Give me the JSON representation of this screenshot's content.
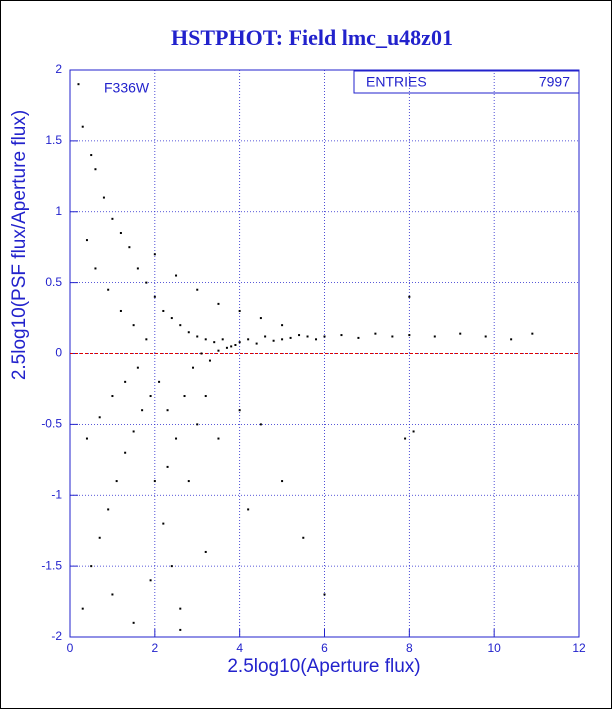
{
  "chart_data": {
    "type": "scatter",
    "title": "HSTPHOT: Field lmc_u48z01",
    "annotation": "F336W",
    "entries": {
      "label": "ENTRIES",
      "value": 7997
    },
    "xlabel": "2.5log10(Aperture flux)",
    "ylabel": "2.5log10(PSF flux/Aperture flux)",
    "xlim": [
      0,
      12
    ],
    "ylim": [
      -2,
      2
    ],
    "xticks": [
      0,
      2,
      4,
      6,
      8,
      10,
      12
    ],
    "yticks": [
      -2,
      -1.5,
      -1,
      -0.5,
      0,
      0.5,
      1,
      1.5,
      2
    ],
    "grid": true,
    "color": "#000000",
    "x": [
      0.2,
      0.3,
      0.5,
      0.6,
      0.8,
      1.0,
      1.2,
      1.4,
      1.6,
      1.8,
      0.3,
      0.5,
      0.7,
      0.9,
      1.1,
      1.3,
      1.5,
      1.7,
      1.9,
      0.4,
      0.6,
      0.9,
      1.2,
      1.5,
      1.8,
      0.4,
      0.7,
      1.0,
      1.3,
      1.6,
      2.0,
      2.2,
      2.4,
      2.6,
      2.8,
      3.0,
      3.2,
      3.4,
      3.6,
      3.8,
      2.1,
      2.3,
      2.5,
      2.7,
      2.9,
      3.1,
      3.3,
      3.5,
      3.7,
      3.9,
      4.0,
      4.2,
      4.4,
      4.6,
      4.8,
      5.0,
      5.2,
      5.4,
      5.6,
      5.8,
      6.0,
      6.4,
      6.8,
      7.2,
      7.6,
      8.0,
      8.6,
      9.2,
      9.8,
      10.4,
      10.9,
      2.0,
      2.2,
      2.4,
      2.6,
      2.3,
      2.8,
      3.0,
      3.2,
      3.5,
      4.0,
      4.5,
      5.0,
      5.5,
      6.0,
      2.0,
      2.5,
      3.0,
      3.5,
      4.0,
      4.5,
      5.0,
      8.0,
      7.9,
      8.1,
      1.0,
      1.5,
      1.9,
      2.6,
      3.2,
      4.2
    ],
    "values": [
      1.9,
      1.6,
      1.4,
      1.3,
      1.1,
      0.95,
      0.85,
      0.75,
      0.6,
      0.5,
      -1.8,
      -1.5,
      -1.3,
      -1.1,
      -0.9,
      -0.7,
      -0.55,
      -0.4,
      -0.3,
      0.8,
      0.6,
      0.45,
      0.3,
      0.2,
      0.1,
      -0.6,
      -0.45,
      -0.3,
      -0.2,
      -0.1,
      0.4,
      0.3,
      0.25,
      0.2,
      0.15,
      0.12,
      0.1,
      0.08,
      0.1,
      0.05,
      -0.2,
      -0.4,
      -0.6,
      -0.3,
      -0.1,
      0.0,
      -0.05,
      0.02,
      0.04,
      0.06,
      0.08,
      0.1,
      0.07,
      0.12,
      0.09,
      0.1,
      0.11,
      0.13,
      0.12,
      0.1,
      0.12,
      0.13,
      0.11,
      0.14,
      0.12,
      0.13,
      0.12,
      0.14,
      0.12,
      0.1,
      0.14,
      -0.9,
      -1.2,
      -1.5,
      -1.8,
      -0.8,
      -0.9,
      -0.5,
      -0.3,
      -0.6,
      -0.4,
      -0.5,
      -0.9,
      -1.3,
      -1.7,
      0.7,
      0.55,
      0.45,
      0.35,
      0.3,
      0.25,
      0.2,
      0.4,
      -0.6,
      -0.55,
      -1.7,
      -1.9,
      -1.6,
      -1.95,
      -1.4,
      -1.1
    ]
  }
}
